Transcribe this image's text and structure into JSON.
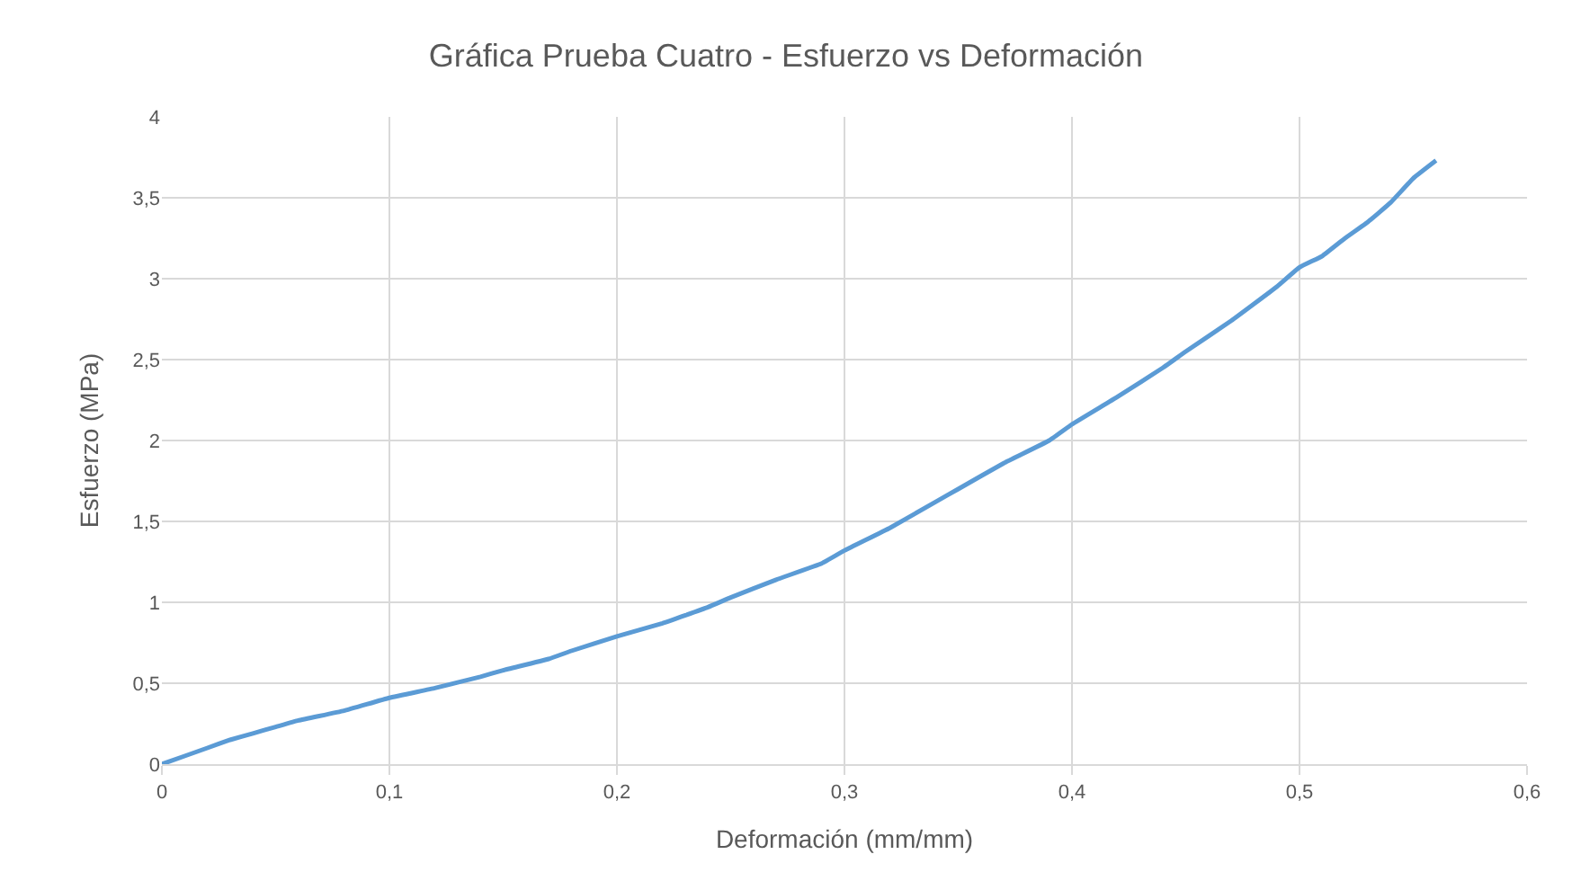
{
  "chart_data": {
    "type": "line",
    "title": "Gráfica Prueba Cuatro - Esfuerzo vs Deformación",
    "xlabel": "Deformación (mm/mm)",
    "ylabel": "Esfuerzo (MPa)",
    "series": [
      {
        "color": "#5b9bd5",
        "x": [
          0,
          0.01,
          0.02,
          0.03,
          0.04,
          0.05,
          0.06,
          0.08,
          0.1,
          0.12,
          0.14,
          0.15,
          0.17,
          0.18,
          0.2,
          0.22,
          0.24,
          0.25,
          0.27,
          0.29,
          0.3,
          0.32,
          0.34,
          0.35,
          0.37,
          0.39,
          0.4,
          0.42,
          0.44,
          0.45,
          0.47,
          0.49,
          0.5,
          0.51,
          0.52,
          0.53,
          0.54,
          0.55,
          0.56
        ],
        "values": [
          0,
          0.05,
          0.1,
          0.15,
          0.19,
          0.23,
          0.27,
          0.33,
          0.41,
          0.47,
          0.54,
          0.58,
          0.65,
          0.7,
          0.79,
          0.87,
          0.97,
          1.03,
          1.14,
          1.24,
          1.32,
          1.46,
          1.62,
          1.7,
          1.86,
          2.0,
          2.1,
          2.27,
          2.45,
          2.55,
          2.74,
          2.95,
          3.07,
          3.14,
          3.25,
          3.35,
          3.47,
          3.62,
          3.73
        ]
      }
    ],
    "xlim": [
      0,
      0.6
    ],
    "ylim": [
      0,
      4
    ],
    "xticks": [
      {
        "value": 0,
        "label": "0"
      },
      {
        "value": 0.1,
        "label": "0,1"
      },
      {
        "value": 0.2,
        "label": "0,2"
      },
      {
        "value": 0.3,
        "label": "0,3"
      },
      {
        "value": 0.4,
        "label": "0,4"
      },
      {
        "value": 0.5,
        "label": "0,5"
      },
      {
        "value": 0.6,
        "label": "0,6"
      }
    ],
    "yticks": [
      {
        "value": 0,
        "label": "0"
      },
      {
        "value": 0.5,
        "label": "0,5"
      },
      {
        "value": 1,
        "label": "1"
      },
      {
        "value": 1.5,
        "label": "1,5"
      },
      {
        "value": 2,
        "label": "2"
      },
      {
        "value": 2.5,
        "label": "2,5"
      },
      {
        "value": 3,
        "label": "3"
      },
      {
        "value": 3.5,
        "label": "3,5"
      },
      {
        "value": 4,
        "label": "4"
      }
    ],
    "grid": true,
    "marker": "none",
    "line_style": "solid",
    "legend": false
  }
}
